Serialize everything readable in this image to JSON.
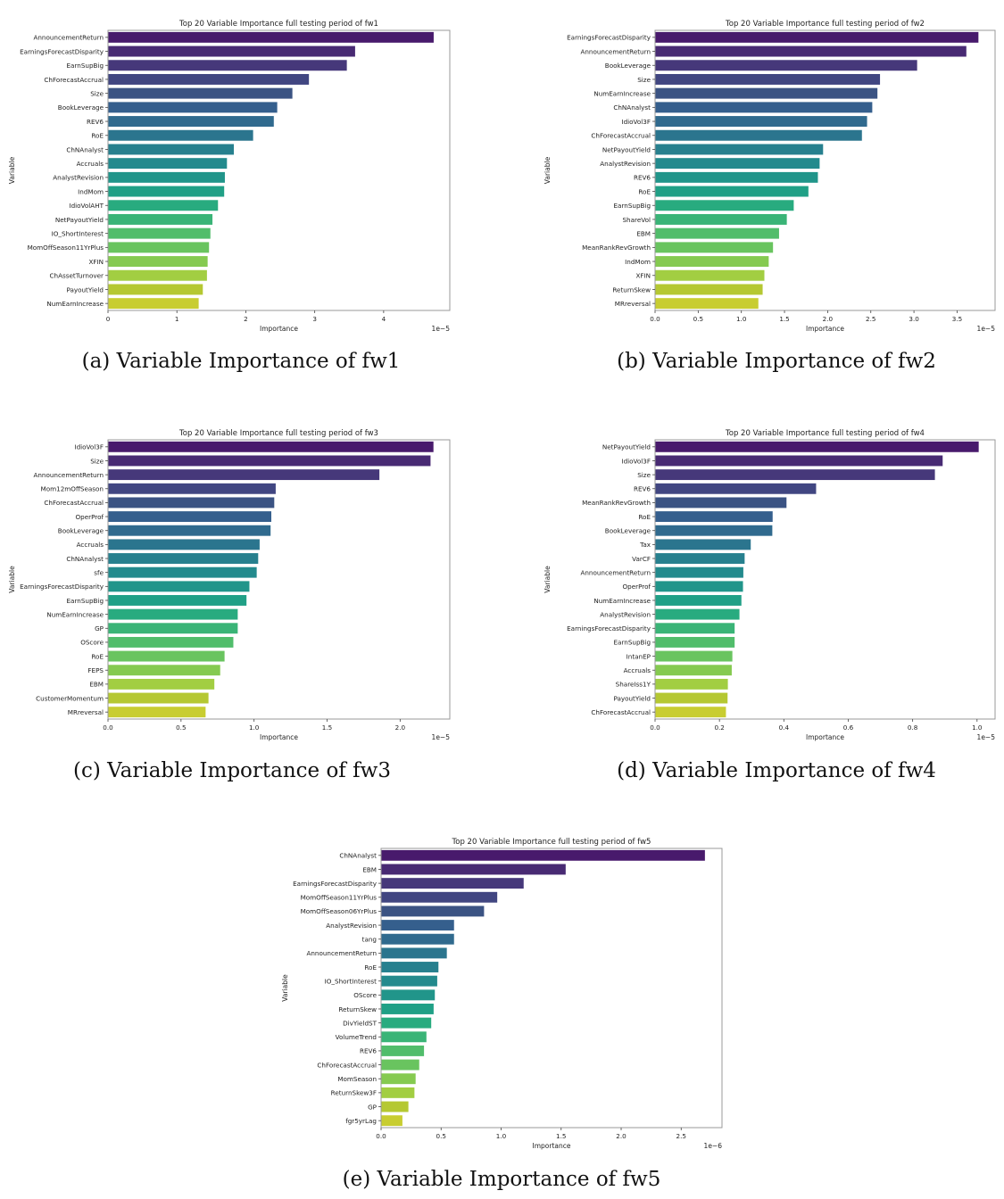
{
  "captions": [
    "(a) Variable Importance of fw1",
    "(b) Variable Importance of fw2",
    "(c) Variable Importance of fw3",
    "(d) Variable Importance of fw4",
    "(e) Variable Importance of fw5"
  ],
  "palette": [
    "#481a6c",
    "#482a73",
    "#46387a",
    "#414681",
    "#3b5383",
    "#355f8d",
    "#306a8e",
    "#2b758e",
    "#27808e",
    "#238a8d",
    "#21958a",
    "#20a086",
    "#28ab7f",
    "#3ab477",
    "#51bd6b",
    "#69c45f",
    "#85ca50",
    "#a2ce42",
    "#b5c832",
    "#c8cd31"
  ],
  "chart_data": [
    {
      "type": "bar",
      "orientation": "horizontal",
      "title": "Top 20 Variable Importance full testing period of fw1",
      "xlabel": "Importance",
      "ylabel": "Variable",
      "scale_label": "1e−5",
      "xlim": [
        0,
        4.96
      ],
      "xticks": [
        0,
        1,
        2,
        3,
        4
      ],
      "xtick_labels": [
        "0",
        "1",
        "2",
        "3",
        "4"
      ],
      "grid": false,
      "categories": [
        "AnnouncementReturn",
        "EarningsForecastDisparity",
        "EarnSupBig",
        "ChForecastAccrual",
        "Size",
        "BookLeverage",
        "REV6",
        "RoE",
        "ChNAnalyst",
        "Accruals",
        "AnalystRevision",
        "IndMom",
        "IdioVolAHT",
        "NetPayoutYield",
        "IO_ShortInterest",
        "MomOffSeason11YrPlus",
        "XFIN",
        "ChAssetTurnover",
        "PayoutYield",
        "NumEarnIncrease"
      ],
      "values": [
        4.73,
        3.59,
        3.47,
        2.92,
        2.68,
        2.46,
        2.41,
        2.11,
        1.83,
        1.73,
        1.7,
        1.69,
        1.6,
        1.52,
        1.49,
        1.47,
        1.45,
        1.44,
        1.38,
        1.32
      ]
    },
    {
      "type": "bar",
      "orientation": "horizontal",
      "title": "Top 20 Variable Importance full testing period of fw2",
      "xlabel": "Importance",
      "ylabel": "Variable",
      "scale_label": "1e−5",
      "xlim": [
        0,
        3.94
      ],
      "xticks": [
        0,
        0.5,
        1,
        1.5,
        2,
        2.5,
        3,
        3.5
      ],
      "xtick_labels": [
        "0.0",
        "0.5",
        "1.0",
        "1.5",
        "2.0",
        "2.5",
        "3.0",
        "3.5"
      ],
      "grid": false,
      "categories": [
        "EarningsForecastDisparity",
        "AnnouncementReturn",
        "BookLeverage",
        "Size",
        "NumEarnIncrease",
        "ChNAnalyst",
        "IdioVol3F",
        "ChForecastAccrual",
        "NetPayoutYield",
        "AnalystRevision",
        "REV6",
        "RoE",
        "EarnSupBig",
        "ShareVol",
        "EBM",
        "MeanRankRevGrowth",
        "IndMom",
        "XFIN",
        "ReturnSkew",
        "MRreversal"
      ],
      "values": [
        3.75,
        3.61,
        3.04,
        2.61,
        2.58,
        2.52,
        2.46,
        2.4,
        1.95,
        1.91,
        1.89,
        1.78,
        1.61,
        1.53,
        1.44,
        1.37,
        1.32,
        1.27,
        1.25,
        1.2
      ]
    },
    {
      "type": "bar",
      "orientation": "horizontal",
      "title": "Top 20 Variable Importance full testing period of fw3",
      "xlabel": "Importance",
      "ylabel": "Variable",
      "scale_label": "1e−5",
      "xlim": [
        0,
        2.34
      ],
      "xticks": [
        0,
        0.5,
        1,
        1.5,
        2
      ],
      "xtick_labels": [
        "0.0",
        "0.5",
        "1.0",
        "1.5",
        "2.0"
      ],
      "grid": false,
      "categories": [
        "IdioVol3F",
        "Size",
        "AnnouncementReturn",
        "Mom12mOffSeason",
        "ChForecastAccrual",
        "OperProf",
        "BookLeverage",
        "Accruals",
        "ChNAnalyst",
        "sfe",
        "EarningsForecastDisparity",
        "EarnSupBig",
        "NumEarnIncrease",
        "GP",
        "OScore",
        "RoE",
        "FEPS",
        "EBM",
        "CustomerMomentum",
        "MRreversal"
      ],
      "values": [
        2.23,
        2.21,
        1.86,
        1.15,
        1.14,
        1.12,
        1.115,
        1.04,
        1.03,
        1.02,
        0.97,
        0.95,
        0.89,
        0.89,
        0.86,
        0.8,
        0.77,
        0.73,
        0.69,
        0.67
      ]
    },
    {
      "type": "bar",
      "orientation": "horizontal",
      "title": "Top 20 Variable Importance full testing period of fw4",
      "xlabel": "Importance",
      "ylabel": "Variable",
      "scale_label": "1e−5",
      "xlim": [
        0,
        1.056
      ],
      "xticks": [
        0,
        0.2,
        0.4,
        0.6,
        0.8,
        1.0
      ],
      "xtick_labels": [
        "0.0",
        "0.2",
        "0.4",
        "0.6",
        "0.8",
        "1.0"
      ],
      "grid": false,
      "categories": [
        "NetPayoutYield",
        "IdioVol3F",
        "Size",
        "REV6",
        "MeanRankRevGrowth",
        "RoE",
        "BookLeverage",
        "Tax",
        "VarCF",
        "AnnouncementReturn",
        "OperProf",
        "NumEarnIncrease",
        "AnalystRevision",
        "EarningsForecastDisparity",
        "EarnSupBig",
        "IntanEP",
        "Accruals",
        "ShareIss1Y",
        "PayoutYield",
        "ChForecastAccrual"
      ],
      "values": [
        1.006,
        0.894,
        0.87,
        0.501,
        0.409,
        0.366,
        0.365,
        0.298,
        0.279,
        0.275,
        0.274,
        0.269,
        0.263,
        0.248,
        0.248,
        0.241,
        0.239,
        0.227,
        0.226,
        0.221
      ]
    },
    {
      "type": "bar",
      "orientation": "horizontal",
      "title": "Top 20 Variable Importance full testing period of fw5",
      "xlabel": "Importance",
      "ylabel": "Variable",
      "scale_label": "1e−6",
      "xlim": [
        0,
        2.84
      ],
      "xticks": [
        0,
        0.5,
        1,
        1.5,
        2,
        2.5
      ],
      "xtick_labels": [
        "0.0",
        "0.5",
        "1.0",
        "1.5",
        "2.0",
        "2.5"
      ],
      "grid": false,
      "categories": [
        "ChNAnalyst",
        "EBM",
        "EarningsForecastDisparity",
        "MomOffSeason11YrPlus",
        "MomOffSeason06YrPlus",
        "AnalystRevision",
        "tang",
        "AnnouncementReturn",
        "RoE",
        "IO_ShortInterest",
        "OScore",
        "ReturnSkew",
        "DivYieldST",
        "VolumeTrend",
        "REV6",
        "ChForecastAccrual",
        "MomSeason",
        "ReturnSkew3F",
        "GP",
        "fgr5yrLag"
      ],
      "values": [
        2.7,
        1.54,
        1.19,
        0.97,
        0.86,
        0.61,
        0.61,
        0.55,
        0.48,
        0.47,
        0.45,
        0.44,
        0.42,
        0.38,
        0.36,
        0.32,
        0.29,
        0.28,
        0.23,
        0.18
      ]
    }
  ]
}
